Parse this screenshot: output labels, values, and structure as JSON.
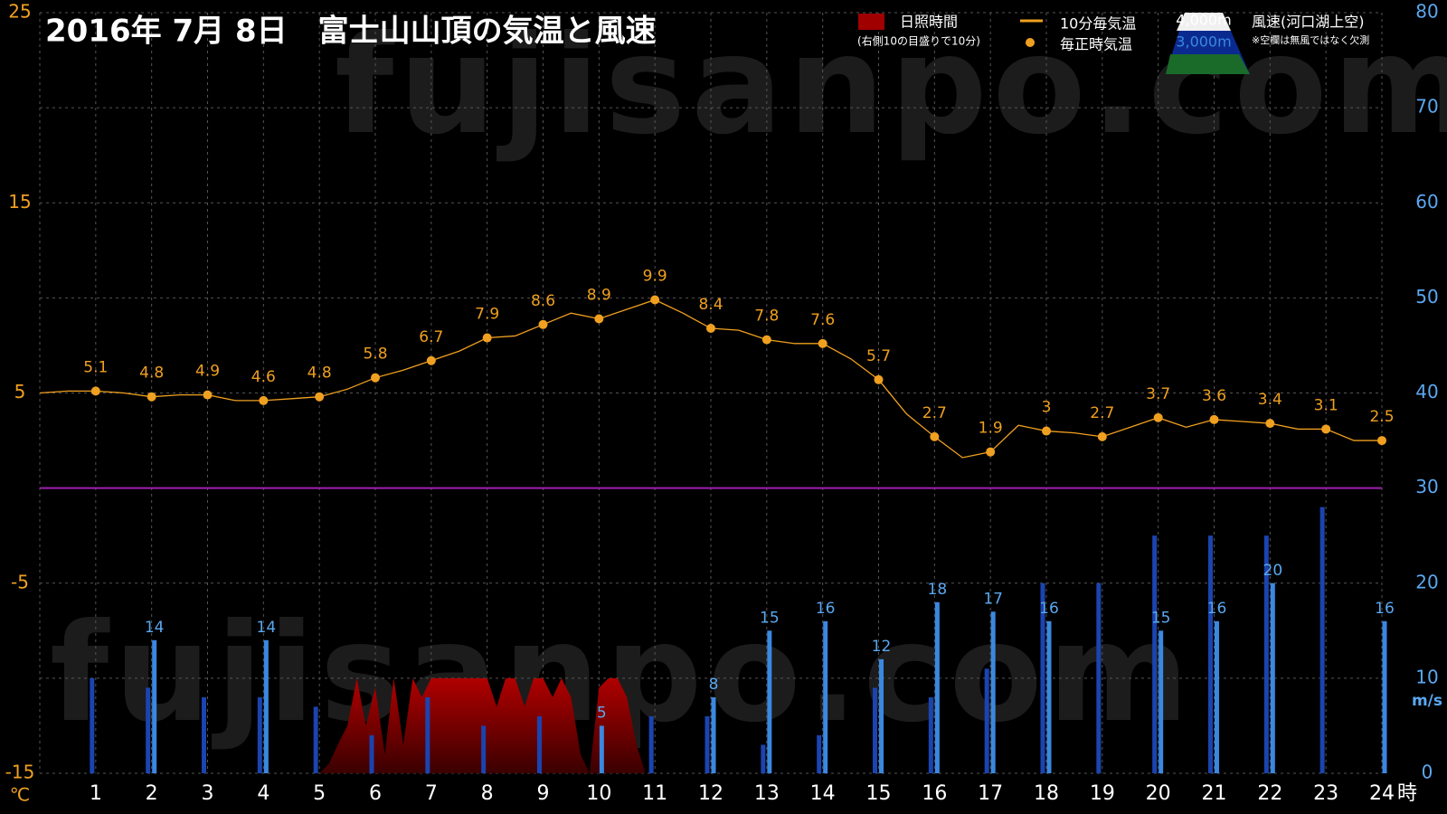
{
  "chart_data": {
    "type": "combo",
    "title": "2016年 7月 8日　富士山山頂の気温と風速",
    "watermark": "fujisanpo.com",
    "xlim": [
      0,
      24
    ],
    "xticks": [
      1,
      2,
      3,
      4,
      5,
      6,
      7,
      8,
      9,
      10,
      11,
      12,
      13,
      14,
      15,
      16,
      17,
      18,
      19,
      20,
      21,
      22,
      23,
      24
    ],
    "x_unit": "時",
    "ylim": [
      -15,
      25
    ],
    "yticks": [
      25,
      15,
      5,
      -5,
      -15
    ],
    "y_unit": "℃",
    "y2lim": [
      0,
      80
    ],
    "y2ticks": [
      0,
      10,
      20,
      30,
      40,
      50,
      60,
      70,
      80
    ],
    "y2_unit": "m/s",
    "grid": true,
    "reference_line": {
      "axis": "y",
      "value": 0,
      "color": "#a020b0"
    },
    "sunshine_note": "(右側10の目盛りで10分)",
    "wind_title": "風速(河口湖上空)",
    "missing_note": "※空欄は無風ではなく欠測",
    "series": [
      {
        "name": "10分毎気温",
        "type": "line",
        "color": "#f0a020",
        "x": [
          0,
          0.5,
          1,
          1.5,
          2,
          2.5,
          3,
          3.5,
          4,
          4.5,
          5,
          5.5,
          6,
          6.5,
          7,
          7.5,
          8,
          8.5,
          9,
          9.5,
          10,
          10.5,
          11,
          11.5,
          12,
          12.5,
          13,
          13.5,
          14,
          14.5,
          15,
          15.5,
          16,
          16.5,
          17,
          17.5,
          18,
          18.5,
          19,
          19.5,
          20,
          20.5,
          21,
          21.5,
          22,
          22.5,
          23,
          23.5,
          24
        ],
        "values": [
          5.0,
          5.1,
          5.1,
          5.0,
          4.8,
          4.9,
          4.9,
          4.6,
          4.6,
          4.7,
          4.8,
          5.2,
          5.8,
          6.2,
          6.7,
          7.2,
          7.9,
          8.0,
          8.6,
          9.2,
          8.9,
          9.4,
          9.9,
          9.2,
          8.4,
          8.3,
          7.8,
          7.6,
          7.6,
          6.8,
          5.7,
          3.9,
          2.7,
          1.6,
          1.9,
          3.3,
          3.0,
          2.9,
          2.7,
          3.2,
          3.7,
          3.2,
          3.6,
          3.5,
          3.4,
          3.1,
          3.1,
          2.5,
          2.5
        ]
      },
      {
        "name": "毎正時気温",
        "type": "point",
        "color": "#f0a020",
        "data_labels": true,
        "x": [
          1,
          2,
          3,
          4,
          5,
          6,
          7,
          8,
          9,
          10,
          11,
          12,
          13,
          14,
          15,
          16,
          17,
          18,
          19,
          20,
          21,
          22,
          23,
          24
        ],
        "values": [
          5.1,
          4.8,
          4.9,
          4.6,
          4.8,
          5.8,
          6.7,
          7.9,
          8.6,
          8.9,
          9.9,
          8.4,
          7.8,
          7.6,
          5.7,
          2.7,
          1.9,
          3,
          2.7,
          3.7,
          3.6,
          3.4,
          3.1,
          2.5
        ]
      },
      {
        "name": "日照時間",
        "type": "area",
        "color": "#a00000",
        "axis": "y2",
        "x": [
          5.0,
          5.17,
          5.33,
          5.5,
          5.67,
          5.83,
          6.0,
          6.17,
          6.33,
          6.5,
          6.67,
          6.83,
          7.0,
          7.17,
          7.33,
          7.5,
          7.67,
          7.83,
          8.0,
          8.17,
          8.33,
          8.5,
          8.67,
          8.83,
          9.0,
          9.17,
          9.33,
          9.5,
          9.67,
          9.83,
          10.0,
          10.17,
          10.33,
          10.5,
          10.67,
          10.83
        ],
        "values": [
          0,
          1,
          3,
          5,
          10,
          5,
          9,
          2,
          10,
          3,
          10,
          8,
          10,
          10,
          10,
          10,
          10,
          10,
          10,
          7,
          10,
          10,
          7,
          10,
          10,
          8,
          10,
          8,
          2,
          0,
          9,
          10,
          10,
          8,
          3,
          0
        ]
      },
      {
        "name": "3,000m",
        "type": "bar",
        "color": "#1a44b0",
        "axis": "y2",
        "x": [
          1,
          2,
          3,
          4,
          5,
          6,
          7,
          8,
          9,
          10,
          11,
          12,
          13,
          14,
          15,
          16,
          17,
          18,
          19,
          20,
          21,
          22,
          23,
          24
        ],
        "values": [
          10,
          9,
          8,
          8,
          7,
          4,
          8,
          5,
          6,
          null,
          6,
          6,
          3,
          4,
          9,
          8,
          11,
          20,
          20,
          25,
          25,
          25,
          28,
          null
        ]
      },
      {
        "name": "4,000m",
        "type": "bar",
        "color": "#3a88e0",
        "axis": "y2",
        "data_labels": true,
        "x": [
          1,
          2,
          3,
          4,
          5,
          6,
          7,
          8,
          9,
          10,
          11,
          12,
          13,
          14,
          15,
          16,
          17,
          18,
          19,
          20,
          21,
          22,
          23,
          24
        ],
        "values": [
          null,
          14,
          null,
          14,
          null,
          null,
          null,
          null,
          null,
          5,
          null,
          8,
          15,
          16,
          12,
          18,
          17,
          16,
          null,
          15,
          16,
          20,
          null,
          16
        ]
      }
    ]
  }
}
